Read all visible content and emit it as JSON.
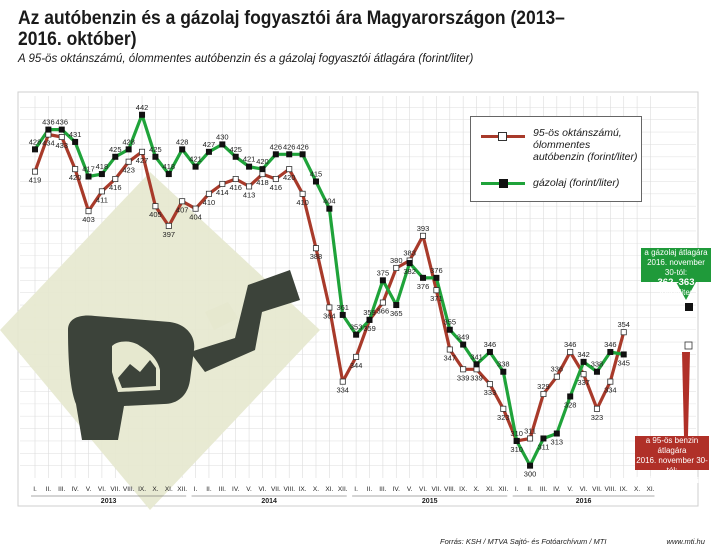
{
  "title": "Az autóbenzin és a gázolaj fogyasztói ára Magyarországon (2013–2016. október)",
  "subtitle": "A 95-ös oktánszámú, ólommentes autóbenzin és a gázolaj fogyasztói átlagára (forint/liter)",
  "legend": {
    "petrol": "95-ös oktánszámú, ólommentes autóbenzin (forint/liter)",
    "diesel": "gázolaj (forint/liter)"
  },
  "annotations": {
    "diesel_line1": "a gázolaj átlagára",
    "diesel_line2": "2016. november 30-tól:",
    "diesel_value": "362–363",
    "diesel_unit": "forint/liter",
    "petrol_line1": "a 95-ös benzin átlagára",
    "petrol_line2": "2016. november 30-tól:",
    "petrol_value": "345–346",
    "petrol_unit": "forint/liter"
  },
  "footer": "Forrás: KSH / MTVA Sajtó- és Fotóarchívum / MTI",
  "footer_url": "www.mti.hu",
  "colors": {
    "petrol": "#a83a2a",
    "diesel": "#1fa33a",
    "annot_diesel": "#1f9a3a",
    "annot_petrol": "#b03028",
    "pump_bg": "#e6e8cf",
    "pump": "#3c433a"
  },
  "icon": "fuel-pump-nozzle-icon",
  "chart_data": {
    "type": "line",
    "months": [
      "I.",
      "II.",
      "III.",
      "IV.",
      "V.",
      "VI.",
      "VII.",
      "VIII.",
      "IX.",
      "X.",
      "XI.",
      "XII.",
      "I.",
      "II.",
      "III.",
      "IV.",
      "V.",
      "VI.",
      "VII.",
      "VIII.",
      "IX.",
      "X.",
      "XI.",
      "XII.",
      "I.",
      "II.",
      "III.",
      "IV.",
      "V.",
      "VI.",
      "VII.",
      "VIII.",
      "IX.",
      "X.",
      "XI.",
      "XII.",
      "I.",
      "II.",
      "III.",
      "IV.",
      "V.",
      "VI.",
      "VII.",
      "VIII.",
      "IX.",
      "X.",
      "XI."
    ],
    "years": [
      {
        "label": "2013",
        "start": 0,
        "end": 11
      },
      {
        "label": "2014",
        "start": 12,
        "end": 23
      },
      {
        "label": "2015",
        "start": 24,
        "end": 35
      },
      {
        "label": "2016",
        "start": 36,
        "end": 46
      }
    ],
    "series": [
      {
        "name": "95-ös oktánszámú, ólommentes autóbenzin (forint/liter)",
        "values": [
          419,
          434,
          433,
          420,
          403,
          411,
          416,
          423,
          427,
          405,
          397,
          407,
          404,
          410,
          414,
          416,
          413,
          418,
          416,
          420,
          410,
          388,
          364,
          334,
          344,
          359,
          366,
          380,
          383,
          393,
          371,
          347,
          339,
          339,
          333,
          323,
          310,
          311,
          329,
          336,
          346,
          337,
          323,
          334,
          354,
          null,
          null
        ]
      },
      {
        "name": "gázolaj (forint/liter)",
        "values": [
          428,
          436,
          436,
          431,
          417,
          418,
          425,
          428,
          442,
          425,
          418,
          428,
          421,
          427,
          430,
          425,
          421,
          420,
          426,
          426,
          426,
          415,
          404,
          361,
          353,
          359,
          375,
          365,
          382,
          376,
          376,
          355,
          349,
          341,
          346,
          338,
          310,
          300,
          311,
          313,
          328,
          342,
          338,
          346,
          345,
          null,
          null
        ]
      }
    ],
    "y_range": [
      295,
      450
    ],
    "grid": true,
    "legend_position": "top-right"
  }
}
